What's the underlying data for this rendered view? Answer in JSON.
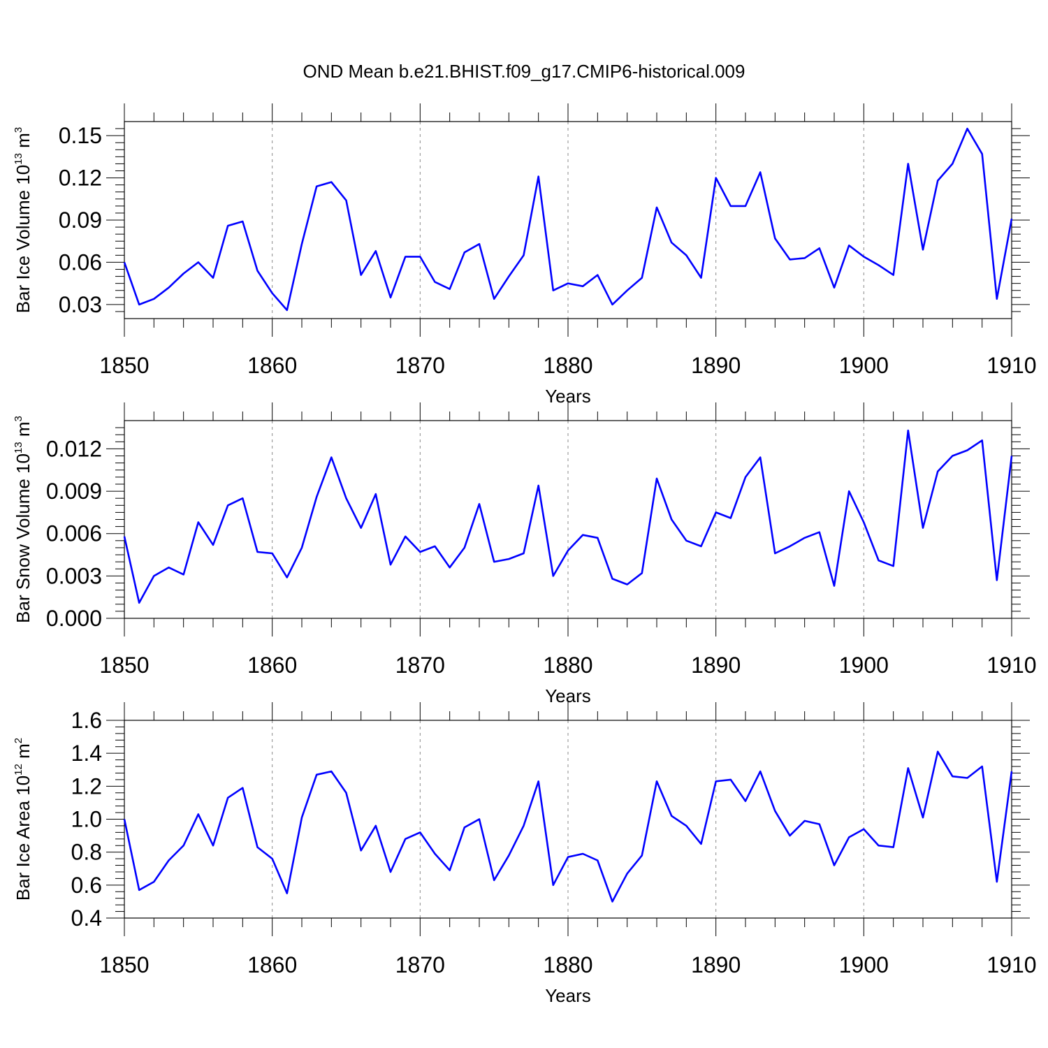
{
  "title": "OND Mean b.e21.BHIST.f09_g17.CMIP6-historical.009",
  "colors": {
    "line": "#0000ff",
    "axis": "#000000",
    "grid": "#888888"
  },
  "chart_data": [
    {
      "type": "line",
      "ylabel_main": "Bar Ice Volume 10",
      "ylabel_exp": "13",
      "ylabel_unit": " m",
      "ylabel_unit_exp": "3",
      "xlabel": "Years",
      "xlim": [
        1850,
        1910
      ],
      "ylim": [
        0.02,
        0.16
      ],
      "yticks": [
        0.03,
        0.06,
        0.09,
        0.12,
        0.15
      ],
      "ytick_labels": [
        "0.03",
        "0.06",
        "0.09",
        "0.12",
        "0.15"
      ],
      "ytick_minor": [
        0.025,
        0.035,
        0.04,
        0.045,
        0.05,
        0.055,
        0.065,
        0.07,
        0.075,
        0.08,
        0.085,
        0.095,
        0.1,
        0.105,
        0.11,
        0.115,
        0.125,
        0.13,
        0.135,
        0.14,
        0.145,
        0.155
      ],
      "xticks": [
        1850,
        1860,
        1870,
        1880,
        1890,
        1900,
        1910
      ],
      "xtick_labels": [
        "1850",
        "1860",
        "1870",
        "1880",
        "1890",
        "1900",
        "1910"
      ],
      "grid_x": [
        1860,
        1870,
        1880,
        1890,
        1900
      ],
      "series": [
        {
          "name": "Bar Ice Volume",
          "x": [
            1850,
            1851,
            1852,
            1853,
            1854,
            1855,
            1856,
            1857,
            1858,
            1859,
            1860,
            1861,
            1862,
            1863,
            1864,
            1865,
            1866,
            1867,
            1868,
            1869,
            1870,
            1871,
            1872,
            1873,
            1874,
            1875,
            1876,
            1877,
            1878,
            1879,
            1880,
            1881,
            1882,
            1883,
            1884,
            1885,
            1886,
            1887,
            1888,
            1889,
            1890,
            1891,
            1892,
            1893,
            1894,
            1895,
            1896,
            1897,
            1898,
            1899,
            1900,
            1901,
            1902,
            1903,
            1904,
            1905,
            1906,
            1907,
            1908,
            1909,
            1910
          ],
          "values": [
            0.06,
            0.03,
            0.034,
            0.042,
            0.052,
            0.06,
            0.049,
            0.086,
            0.089,
            0.054,
            0.038,
            0.026,
            0.073,
            0.114,
            0.117,
            0.104,
            0.051,
            0.068,
            0.035,
            0.064,
            0.064,
            0.046,
            0.041,
            0.067,
            0.073,
            0.034,
            0.05,
            0.065,
            0.121,
            0.04,
            0.045,
            0.043,
            0.051,
            0.03,
            0.04,
            0.049,
            0.099,
            0.074,
            0.065,
            0.049,
            0.12,
            0.1,
            0.1,
            0.124,
            0.077,
            0.062,
            0.063,
            0.07,
            0.042,
            0.072,
            0.064,
            0.058,
            0.051,
            0.13,
            0.069,
            0.118,
            0.13,
            0.155,
            0.137,
            0.034,
            0.091
          ]
        }
      ]
    },
    {
      "type": "line",
      "ylabel_main": "Bar Snow Volume 10",
      "ylabel_exp": "13",
      "ylabel_unit": " m",
      "ylabel_unit_exp": "3",
      "xlabel": "Years",
      "xlim": [
        1850,
        1910
      ],
      "ylim": [
        0.0,
        0.014
      ],
      "yticks": [
        0.0,
        0.003,
        0.006,
        0.009,
        0.012
      ],
      "ytick_labels": [
        "0.000",
        "0.003",
        "0.006",
        "0.009",
        "0.012"
      ],
      "ytick_minor": [
        0.0005,
        0.001,
        0.0015,
        0.002,
        0.0025,
        0.0035,
        0.004,
        0.0045,
        0.005,
        0.0055,
        0.0065,
        0.007,
        0.0075,
        0.008,
        0.0085,
        0.0095,
        0.01,
        0.0105,
        0.011,
        0.0115,
        0.0125,
        0.013,
        0.0135
      ],
      "xticks": [
        1850,
        1860,
        1870,
        1880,
        1890,
        1900,
        1910
      ],
      "xtick_labels": [
        "1850",
        "1860",
        "1870",
        "1880",
        "1890",
        "1900",
        "1910"
      ],
      "grid_x": [
        1860,
        1870,
        1880,
        1890,
        1900
      ],
      "series": [
        {
          "name": "Bar Snow Volume",
          "x": [
            1850,
            1851,
            1852,
            1853,
            1854,
            1855,
            1856,
            1857,
            1858,
            1859,
            1860,
            1861,
            1862,
            1863,
            1864,
            1865,
            1866,
            1867,
            1868,
            1869,
            1870,
            1871,
            1872,
            1873,
            1874,
            1875,
            1876,
            1877,
            1878,
            1879,
            1880,
            1881,
            1882,
            1883,
            1884,
            1885,
            1886,
            1887,
            1888,
            1889,
            1890,
            1891,
            1892,
            1893,
            1894,
            1895,
            1896,
            1897,
            1898,
            1899,
            1900,
            1901,
            1902,
            1903,
            1904,
            1905,
            1906,
            1907,
            1908,
            1909,
            1910
          ],
          "values": [
            0.0058,
            0.0011,
            0.003,
            0.0036,
            0.0031,
            0.0068,
            0.0052,
            0.008,
            0.0085,
            0.0047,
            0.0046,
            0.0029,
            0.005,
            0.0086,
            0.0114,
            0.0085,
            0.0064,
            0.0088,
            0.0038,
            0.0058,
            0.0047,
            0.0051,
            0.0036,
            0.005,
            0.0081,
            0.004,
            0.0042,
            0.0046,
            0.0094,
            0.003,
            0.0048,
            0.0059,
            0.0057,
            0.0028,
            0.0024,
            0.0032,
            0.0099,
            0.007,
            0.0055,
            0.0051,
            0.0075,
            0.0071,
            0.01,
            0.0114,
            0.0046,
            0.0051,
            0.0057,
            0.0061,
            0.0023,
            0.009,
            0.0068,
            0.0041,
            0.0037,
            0.0133,
            0.0064,
            0.0104,
            0.0115,
            0.0119,
            0.0126,
            0.0027,
            0.0115
          ]
        }
      ]
    },
    {
      "type": "line",
      "ylabel_main": "Bar Ice Area 10",
      "ylabel_exp": "12",
      "ylabel_unit": " m",
      "ylabel_unit_exp": "2",
      "xlabel": "Years",
      "xlim": [
        1850,
        1910
      ],
      "ylim": [
        0.4,
        1.6
      ],
      "yticks": [
        0.4,
        0.6,
        0.8,
        1.0,
        1.2,
        1.4,
        1.6
      ],
      "ytick_labels": [
        "0.4",
        "0.6",
        "0.8",
        "1.0",
        "1.2",
        "1.4",
        "1.6"
      ],
      "ytick_minor": [
        0.44,
        0.48,
        0.52,
        0.56,
        0.64,
        0.68,
        0.72,
        0.76,
        0.84,
        0.88,
        0.92,
        0.96,
        1.04,
        1.08,
        1.12,
        1.16,
        1.24,
        1.28,
        1.32,
        1.36,
        1.44,
        1.48,
        1.52,
        1.56
      ],
      "xticks": [
        1850,
        1860,
        1870,
        1880,
        1890,
        1900,
        1910
      ],
      "xtick_labels": [
        "1850",
        "1860",
        "1870",
        "1880",
        "1890",
        "1900",
        "1910"
      ],
      "grid_x": [
        1860,
        1870,
        1880,
        1890,
        1900
      ],
      "series": [
        {
          "name": "Bar Ice Area",
          "x": [
            1850,
            1851,
            1852,
            1853,
            1854,
            1855,
            1856,
            1857,
            1858,
            1859,
            1860,
            1861,
            1862,
            1863,
            1864,
            1865,
            1866,
            1867,
            1868,
            1869,
            1870,
            1871,
            1872,
            1873,
            1874,
            1875,
            1876,
            1877,
            1878,
            1879,
            1880,
            1881,
            1882,
            1883,
            1884,
            1885,
            1886,
            1887,
            1888,
            1889,
            1890,
            1891,
            1892,
            1893,
            1894,
            1895,
            1896,
            1897,
            1898,
            1899,
            1900,
            1901,
            1902,
            1903,
            1904,
            1905,
            1906,
            1907,
            1908,
            1909,
            1910
          ],
          "values": [
            1.0,
            0.57,
            0.62,
            0.75,
            0.84,
            1.03,
            0.84,
            1.13,
            1.19,
            0.83,
            0.76,
            0.55,
            1.01,
            1.27,
            1.29,
            1.16,
            0.81,
            0.96,
            0.68,
            0.88,
            0.92,
            0.79,
            0.69,
            0.95,
            1.0,
            0.63,
            0.78,
            0.96,
            1.23,
            0.6,
            0.77,
            0.79,
            0.75,
            0.5,
            0.67,
            0.78,
            1.23,
            1.02,
            0.96,
            0.85,
            1.23,
            1.24,
            1.11,
            1.29,
            1.05,
            0.9,
            0.99,
            0.97,
            0.72,
            0.89,
            0.94,
            0.84,
            0.83,
            1.31,
            1.01,
            1.41,
            1.26,
            1.25,
            1.32,
            0.62,
            1.29
          ]
        }
      ]
    }
  ]
}
